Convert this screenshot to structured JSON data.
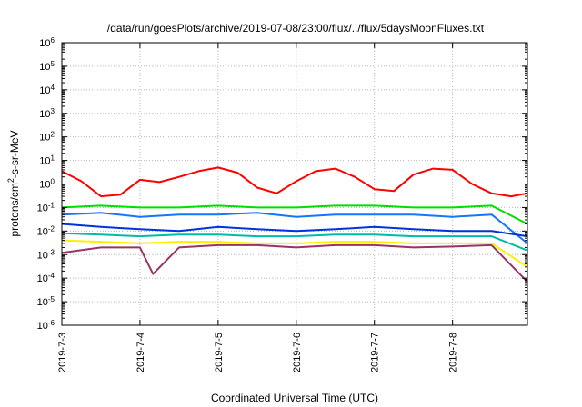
{
  "chart_data": {
    "type": "line",
    "title": "/data/run/goesPlots/archive/2019-07-08/23:00/flux/../flux/5daysMoonFluxes.txt",
    "xlabel": "Coordinated Universal Time (UTC)",
    "ylabel": "protons/cm2-s-sr-MeV",
    "ylabel_parts": {
      "base": "protons/cm",
      "sup": "2",
      "rest": "-s-sr-MeV"
    },
    "yscale": "log",
    "ylim_exp": [
      -6,
      6
    ],
    "y_ticks": [
      "10",
      "10",
      "10",
      "10",
      "10",
      "10",
      "10",
      "10",
      "10",
      "10",
      "10",
      "10",
      "10"
    ],
    "y_tick_exps": [
      "-6",
      "-5",
      "-4",
      "-3",
      "-2",
      "-1",
      "0",
      "1",
      "2",
      "3",
      "4",
      "5",
      "6"
    ],
    "xlim": [
      "2019-07-03 00:00",
      "2019-07-08 23:00"
    ],
    "x_ticks": [
      "2019-7-3",
      "2019-7-4",
      "2019-7-5",
      "2019-7-6",
      "2019-7-7",
      "2019-7-8"
    ],
    "grid": true,
    "series": [
      {
        "color": "#ff0000",
        "x": [
          "2019-07-03 00:00",
          "2019-07-03 06:00",
          "2019-07-03 12:00",
          "2019-07-03 18:00",
          "2019-07-04 00:00",
          "2019-07-04 06:00",
          "2019-07-04 12:00",
          "2019-07-04 18:00",
          "2019-07-05 00:00",
          "2019-07-05 06:00",
          "2019-07-05 12:00",
          "2019-07-05 18:00",
          "2019-07-06 00:00",
          "2019-07-06 06:00",
          "2019-07-06 12:00",
          "2019-07-06 18:00",
          "2019-07-07 00:00",
          "2019-07-07 06:00",
          "2019-07-07 12:00",
          "2019-07-07 18:00",
          "2019-07-08 00:00",
          "2019-07-08 06:00",
          "2019-07-08 12:00",
          "2019-07-08 18:00",
          "2019-07-08 23:00"
        ],
        "y": [
          3.5,
          1.3,
          0.3,
          0.35,
          1.5,
          1.2,
          2.0,
          3.5,
          5.0,
          3.0,
          0.7,
          0.4,
          1.3,
          3.5,
          4.5,
          2.0,
          0.6,
          0.5,
          2.5,
          4.5,
          4.0,
          1.0,
          0.4,
          0.3,
          0.4
        ]
      },
      {
        "color": "#00dd00",
        "x": [
          "2019-07-03 00:00",
          "2019-07-03 12:00",
          "2019-07-04 00:00",
          "2019-07-04 12:00",
          "2019-07-05 00:00",
          "2019-07-05 12:00",
          "2019-07-06 00:00",
          "2019-07-06 12:00",
          "2019-07-07 00:00",
          "2019-07-07 12:00",
          "2019-07-08 00:00",
          "2019-07-08 12:00",
          "2019-07-08 23:00"
        ],
        "y": [
          0.1,
          0.12,
          0.1,
          0.1,
          0.12,
          0.1,
          0.1,
          0.12,
          0.12,
          0.1,
          0.1,
          0.12,
          0.02
        ]
      },
      {
        "color": "#0033dd",
        "x": [
          "2019-07-03 00:00",
          "2019-07-03 12:00",
          "2019-07-04 00:00",
          "2019-07-04 12:00",
          "2019-07-05 00:00",
          "2019-07-05 12:00",
          "2019-07-06 00:00",
          "2019-07-06 12:00",
          "2019-07-07 00:00",
          "2019-07-07 12:00",
          "2019-07-08 00:00",
          "2019-07-08 12:00",
          "2019-07-08 23:00"
        ],
        "y": [
          0.02,
          0.015,
          0.012,
          0.01,
          0.015,
          0.012,
          0.01,
          0.012,
          0.015,
          0.012,
          0.01,
          0.01,
          0.006
        ]
      },
      {
        "color": "#1177ff",
        "x": [
          "2019-07-03 00:00",
          "2019-07-03 12:00",
          "2019-07-04 00:00",
          "2019-07-04 12:00",
          "2019-07-05 00:00",
          "2019-07-05 12:00",
          "2019-07-06 00:00",
          "2019-07-06 12:00",
          "2019-07-07 00:00",
          "2019-07-07 12:00",
          "2019-07-08 00:00",
          "2019-07-08 12:00",
          "2019-07-08 23:00"
        ],
        "y": [
          0.05,
          0.06,
          0.04,
          0.05,
          0.05,
          0.06,
          0.04,
          0.05,
          0.05,
          0.05,
          0.04,
          0.05,
          0.003
        ]
      },
      {
        "color": "#00bbaa",
        "x": [
          "2019-07-03 00:00",
          "2019-07-03 12:00",
          "2019-07-04 00:00",
          "2019-07-04 12:00",
          "2019-07-05 00:00",
          "2019-07-05 12:00",
          "2019-07-06 00:00",
          "2019-07-06 12:00",
          "2019-07-07 00:00",
          "2019-07-07 12:00",
          "2019-07-08 00:00",
          "2019-07-08 12:00",
          "2019-07-08 23:00"
        ],
        "y": [
          0.008,
          0.007,
          0.006,
          0.007,
          0.007,
          0.006,
          0.006,
          0.007,
          0.007,
          0.006,
          0.006,
          0.006,
          0.0015
        ]
      },
      {
        "color": "#ffee00",
        "x": [
          "2019-07-03 00:00",
          "2019-07-03 12:00",
          "2019-07-04 00:00",
          "2019-07-04 12:00",
          "2019-07-05 00:00",
          "2019-07-05 12:00",
          "2019-07-06 00:00",
          "2019-07-06 12:00",
          "2019-07-07 00:00",
          "2019-07-07 12:00",
          "2019-07-08 00:00",
          "2019-07-08 12:00",
          "2019-07-08 23:00"
        ],
        "y": [
          0.004,
          0.0035,
          0.003,
          0.0035,
          0.0035,
          0.003,
          0.003,
          0.0035,
          0.0035,
          0.003,
          0.003,
          0.003,
          0.0003
        ]
      },
      {
        "color": "#993366",
        "x": [
          "2019-07-03 00:00",
          "2019-07-03 12:00",
          "2019-07-04 00:00",
          "2019-07-04 04:00",
          "2019-07-04 12:00",
          "2019-07-05 00:00",
          "2019-07-05 12:00",
          "2019-07-06 00:00",
          "2019-07-06 12:00",
          "2019-07-07 00:00",
          "2019-07-07 12:00",
          "2019-07-08 00:00",
          "2019-07-08 12:00",
          "2019-07-08 23:00"
        ],
        "y": [
          0.0012,
          0.002,
          0.002,
          0.00015,
          0.002,
          0.0025,
          0.0025,
          0.002,
          0.0025,
          0.0025,
          0.002,
          0.0022,
          0.0025,
          7e-05
        ]
      }
    ]
  }
}
